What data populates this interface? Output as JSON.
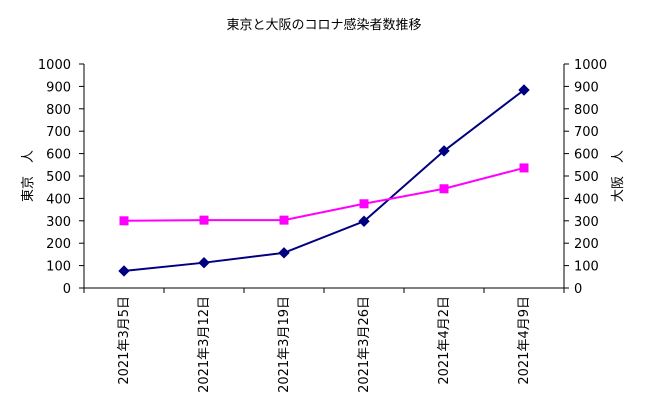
{
  "chart_data": {
    "type": "line",
    "title": "東京と大阪のコロナ感染者数推移",
    "categories": [
      "2021年3月5日",
      "2021年3月12日",
      "2021年3月19日",
      "2021年3月26日",
      "2021年4月2日",
      "2021年4月9日"
    ],
    "ylabel_left": "東京　人",
    "ylabel_right": "大阪　人",
    "ylim": [
      0,
      1000
    ],
    "y_ticks": [
      0,
      100,
      200,
      300,
      400,
      500,
      600,
      700,
      800,
      900,
      1000
    ],
    "y_tick_labels": [
      "0",
      "100",
      "200",
      "300",
      "400",
      "500",
      "600",
      "700",
      "800",
      "900",
      "1000"
    ],
    "grid": false,
    "legend": "none",
    "series": [
      {
        "axis": "left",
        "color": "#000080",
        "marker": "diamond",
        "values": [
          76,
          113,
          157,
          298,
          612,
          884
        ]
      },
      {
        "axis": "right",
        "color": "#ff00ff",
        "marker": "square",
        "values": [
          300,
          303,
          303,
          376,
          443,
          536
        ]
      }
    ]
  }
}
